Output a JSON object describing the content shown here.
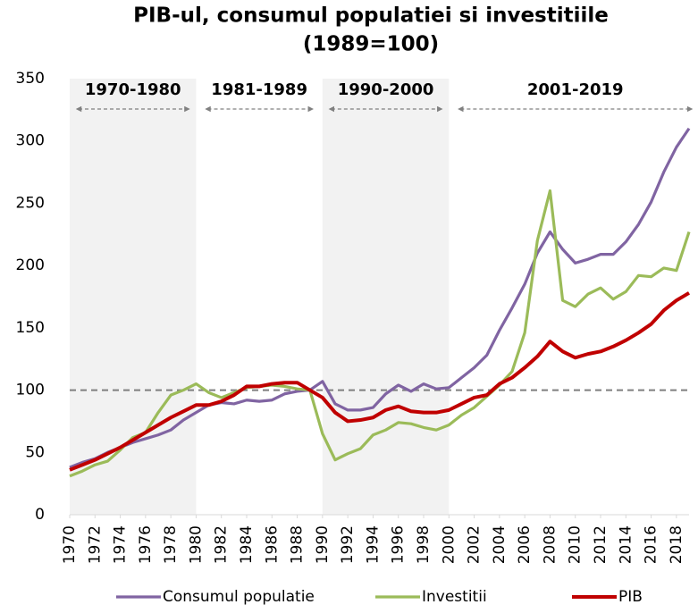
{
  "chart_data": {
    "type": "line",
    "title": "PIB-ul, consumul populatiei si investitiile",
    "subtitle": "(1989=100)",
    "x": [
      1970,
      1971,
      1972,
      1973,
      1974,
      1975,
      1976,
      1977,
      1978,
      1979,
      1980,
      1981,
      1982,
      1983,
      1984,
      1985,
      1986,
      1987,
      1988,
      1989,
      1990,
      1991,
      1992,
      1993,
      1994,
      1995,
      1996,
      1997,
      1998,
      1999,
      2000,
      2001,
      2002,
      2003,
      2004,
      2005,
      2006,
      2007,
      2008,
      2009,
      2010,
      2011,
      2012,
      2013,
      2014,
      2015,
      2016,
      2017,
      2018,
      2019
    ],
    "xlim": [
      1970,
      2019
    ],
    "xticks": [
      1970,
      1972,
      1974,
      1976,
      1978,
      1980,
      1982,
      1984,
      1986,
      1988,
      1990,
      1992,
      1994,
      1996,
      1998,
      2000,
      2002,
      2004,
      2006,
      2008,
      2010,
      2012,
      2014,
      2016,
      2018
    ],
    "ylim": [
      0,
      350
    ],
    "yticks": [
      0,
      50,
      100,
      150,
      200,
      250,
      300,
      350
    ],
    "reference_line": 100,
    "periods": [
      {
        "label": "1970-1980",
        "start": 1970,
        "end": 1980,
        "shaded": true
      },
      {
        "label": "1981-1989",
        "start": 1981,
        "end": 1989,
        "shaded": false
      },
      {
        "label": "1990-2000",
        "start": 1990,
        "end": 2000,
        "shaded": true
      },
      {
        "label": "2001-2019",
        "start": 2001,
        "end": 2019,
        "shaded": false
      }
    ],
    "series": [
      {
        "name": "Consumul populatie",
        "color": "#8064a2",
        "values": [
          38,
          42,
          45,
          50,
          54,
          58,
          61,
          64,
          68,
          76,
          82,
          88,
          90,
          89,
          92,
          91,
          92,
          97,
          99,
          100,
          107,
          89,
          84,
          84,
          86,
          97,
          104,
          99,
          105,
          101,
          102,
          110,
          118,
          128,
          148,
          166,
          185,
          210,
          227,
          213,
          202,
          205,
          209,
          209,
          219,
          233,
          251,
          275,
          295,
          310
        ]
      },
      {
        "name": "Investitii",
        "color": "#9bbb59",
        "values": [
          31,
          35,
          40,
          43,
          52,
          62,
          66,
          82,
          96,
          100,
          105,
          98,
          94,
          98,
          102,
          103,
          104,
          103,
          101,
          100,
          65,
          44,
          49,
          53,
          64,
          68,
          74,
          73,
          70,
          68,
          72,
          80,
          86,
          95,
          104,
          115,
          146,
          220,
          260,
          172,
          167,
          177,
          182,
          173,
          179,
          192,
          191,
          198,
          196,
          227
        ]
      },
      {
        "name": "PIB",
        "color": "#c00000",
        "values": [
          36,
          40,
          44,
          49,
          54,
          60,
          66,
          72,
          78,
          83,
          88,
          88,
          91,
          96,
          103,
          103,
          105,
          106,
          106,
          100,
          94,
          82,
          75,
          76,
          78,
          84,
          87,
          83,
          82,
          82,
          84,
          89,
          94,
          96,
          105,
          110,
          118,
          127,
          139,
          131,
          126,
          129,
          131,
          135,
          140,
          146,
          153,
          164,
          172,
          178
        ]
      }
    ]
  }
}
